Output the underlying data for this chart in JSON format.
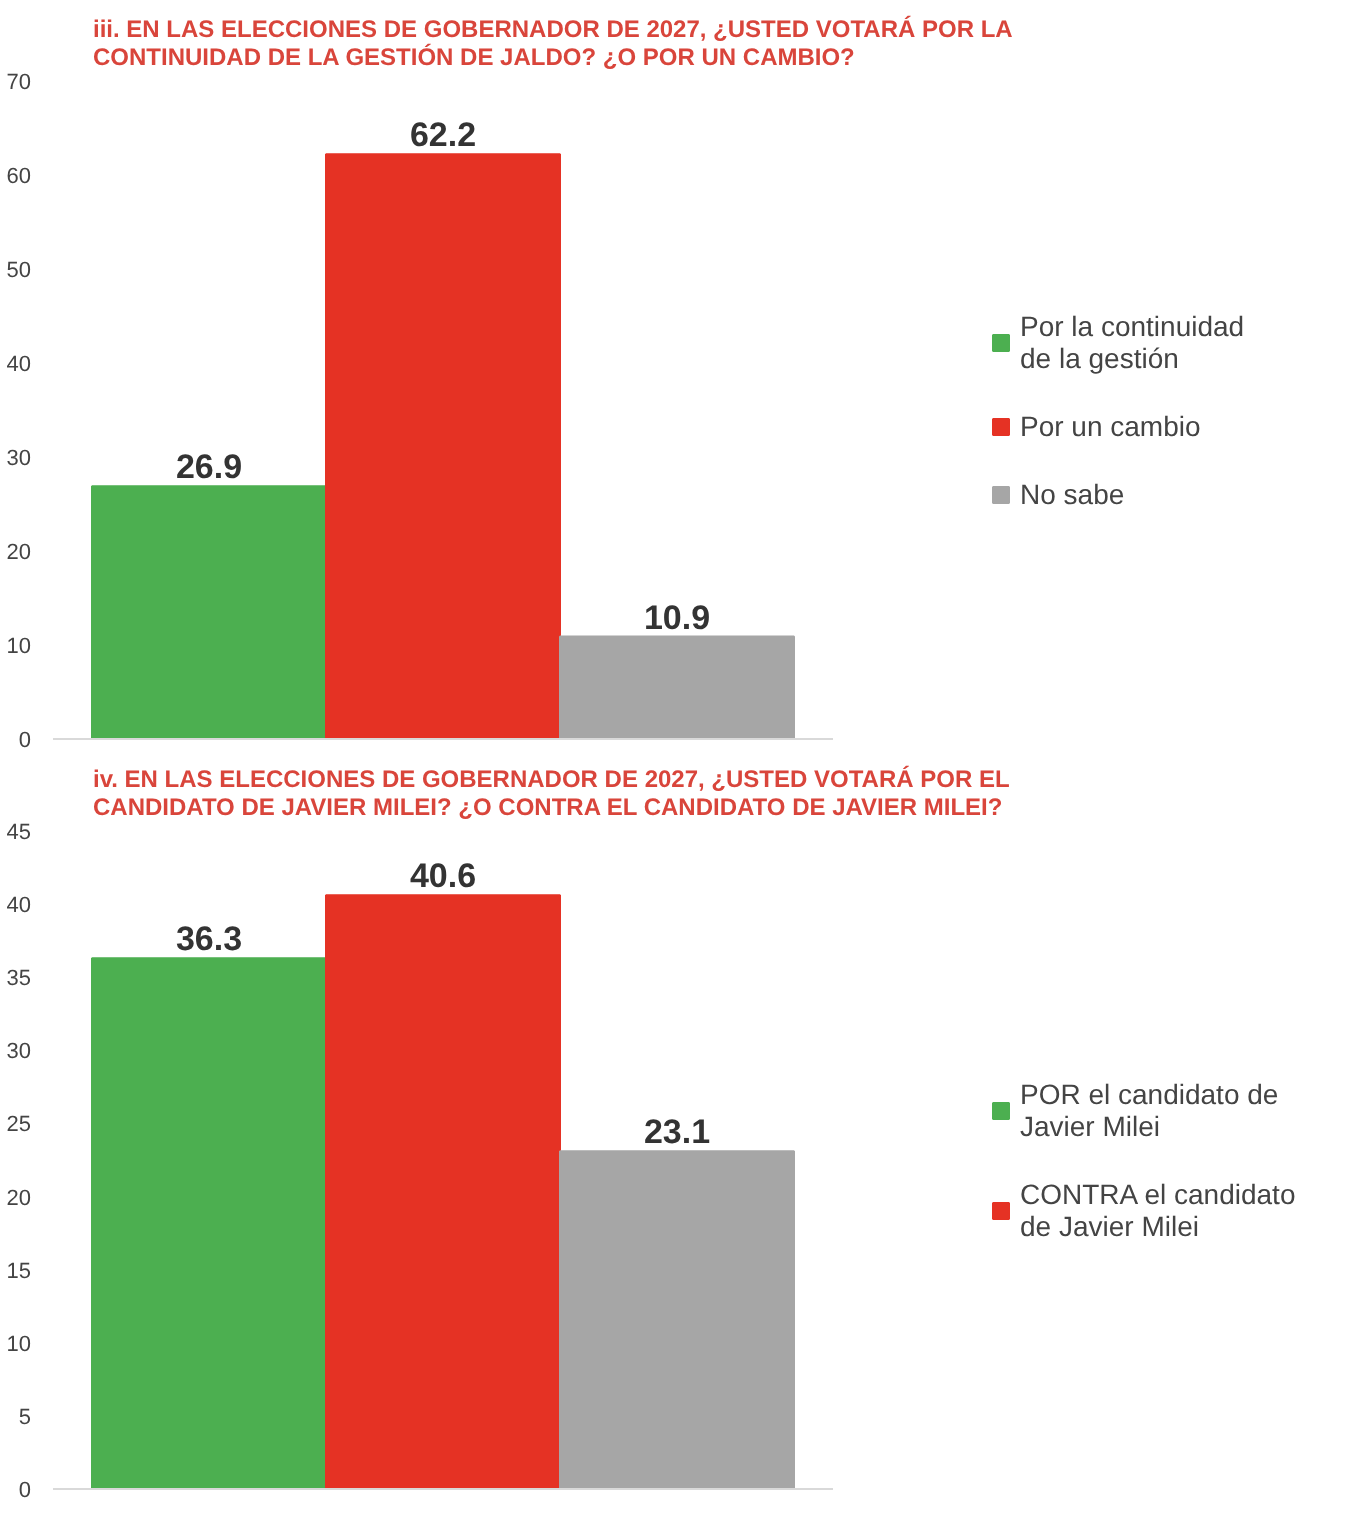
{
  "chart_data": [
    {
      "type": "bar",
      "title": "iii. EN LAS ELECCIONES DE GOBERNADOR DE 2027, ¿USTED VOTARÁ POR LA CONTINUIDAD DE LA GESTIÓN DE JALDO? ¿O POR UN CAMBIO?",
      "categories": [
        null
      ],
      "series": [
        {
          "name": "Por la continuidad de la gestión",
          "color": "#4caf50",
          "values": [
            26.9
          ]
        },
        {
          "name": "Por un cambio",
          "color": "#e53224",
          "values": [
            62.2
          ]
        },
        {
          "name": "No sabe",
          "color": "#a6a6a6",
          "values": [
            10.9
          ]
        }
      ],
      "ylim": [
        0,
        70
      ],
      "yticks": [
        0,
        10,
        20,
        30,
        40,
        50,
        60,
        70
      ],
      "data_labels": true,
      "legend": "right",
      "grid": false
    },
    {
      "type": "bar",
      "title": "iv. EN LAS ELECCIONES DE GOBERNADOR DE 2027, ¿USTED VOTARÁ POR EL CANDIDATO DE JAVIER MILEI? ¿O CONTRA EL CANDIDATO DE JAVIER MILEI?",
      "categories": [
        null
      ],
      "series": [
        {
          "name": "POR el candidato de Javier Milei",
          "color": "#4caf50",
          "values": [
            36.3
          ]
        },
        {
          "name": "CONTRA el candidato de Javier Milei",
          "color": "#e53224",
          "values": [
            40.6
          ]
        },
        {
          "name": null,
          "color": "#a6a6a6",
          "values": [
            23.1
          ]
        }
      ],
      "ylim": [
        0,
        45
      ],
      "yticks": [
        0,
        5,
        10,
        15,
        20,
        25,
        30,
        35,
        40,
        45
      ],
      "data_labels": true,
      "legend": "right",
      "grid": false
    }
  ]
}
